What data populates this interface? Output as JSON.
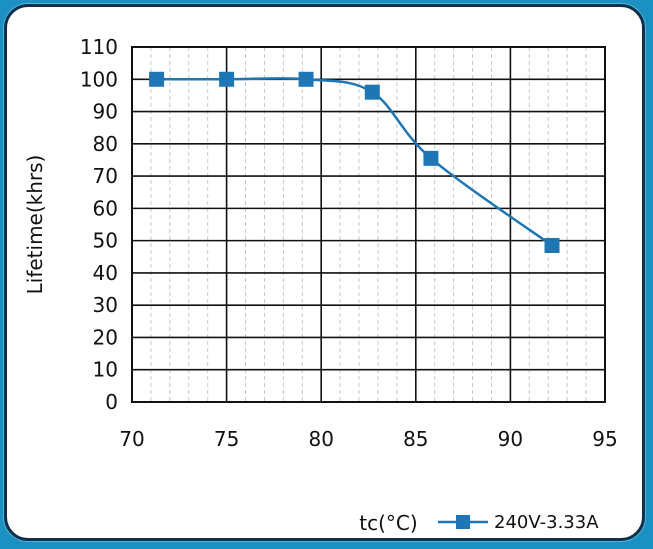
{
  "chart_data": {
    "type": "line",
    "xlabel": "tc(°C)",
    "ylabel": "Lifetime(khrs)",
    "xlim": [
      70,
      95
    ],
    "ylim": [
      0,
      110
    ],
    "x_ticks": [
      70,
      75,
      80,
      85,
      90,
      95
    ],
    "y_ticks": [
      0,
      10,
      20,
      30,
      40,
      50,
      60,
      70,
      80,
      90,
      100,
      110
    ],
    "grid": true,
    "legend_position": "bottom-right",
    "series": [
      {
        "name": "240V-3.33A",
        "color": "#1f76b4",
        "marker": "square",
        "x": [
          71.3,
          75.0,
          79.2,
          82.7,
          85.8,
          92.2
        ],
        "y": [
          100,
          100,
          100,
          96,
          75.5,
          48.5
        ]
      }
    ]
  }
}
